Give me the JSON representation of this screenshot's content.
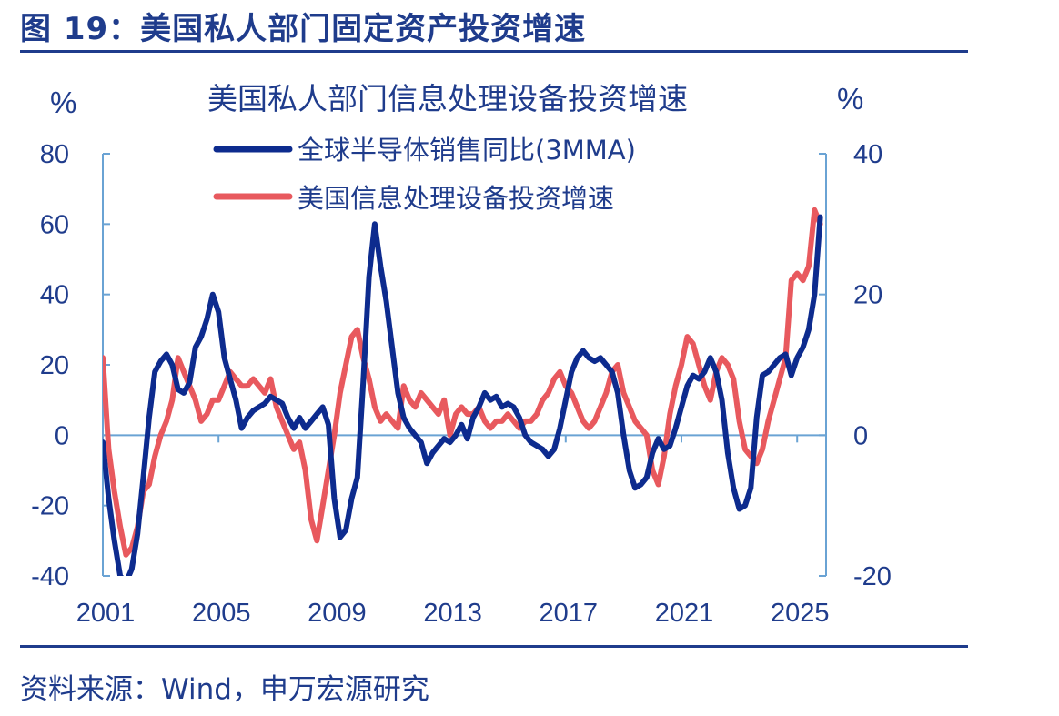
{
  "figure": {
    "title": "图 19：美国私人部门固定资产投资增速",
    "source": "资料来源：Wind，申万宏源研究"
  },
  "colors": {
    "brand": "#1f3c8c",
    "axis": "#6aa3d4",
    "series_semis": "#0d2b8e",
    "series_invest": "#e8595e"
  },
  "chart_data": {
    "type": "line",
    "title": "美国私人部门信息处理设备投资增速",
    "left_unit": "%",
    "right_unit": "%",
    "x_ticks": [
      "2001",
      "2005",
      "2009",
      "2013",
      "2017",
      "2021",
      "2025"
    ],
    "x_range": [
      2001,
      2026
    ],
    "y_left": {
      "range": [
        -40,
        80
      ],
      "ticks": [
        "-40",
        "-20",
        "0",
        "20",
        "40",
        "60",
        "80"
      ]
    },
    "y_right": {
      "range": [
        -20,
        40
      ],
      "ticks": [
        "-20",
        "0",
        "20",
        "40"
      ]
    },
    "grid": false,
    "legend_placement": "top-center",
    "series": [
      {
        "name": "全球半导体销售同比(3MMA)",
        "axis": "left",
        "points": [
          [
            2001.0,
            -2
          ],
          [
            2001.2,
            -18
          ],
          [
            2001.4,
            -30
          ],
          [
            2001.6,
            -40
          ],
          [
            2001.8,
            -42
          ],
          [
            2002.0,
            -38
          ],
          [
            2002.2,
            -28
          ],
          [
            2002.4,
            -12
          ],
          [
            2002.6,
            5
          ],
          [
            2002.8,
            18
          ],
          [
            2003.0,
            21
          ],
          [
            2003.2,
            23
          ],
          [
            2003.4,
            20
          ],
          [
            2003.6,
            13
          ],
          [
            2003.8,
            12
          ],
          [
            2004.0,
            15
          ],
          [
            2004.2,
            25
          ],
          [
            2004.4,
            28
          ],
          [
            2004.6,
            33
          ],
          [
            2004.8,
            40
          ],
          [
            2005.0,
            35
          ],
          [
            2005.2,
            22
          ],
          [
            2005.4,
            16
          ],
          [
            2005.6,
            10
          ],
          [
            2005.8,
            2
          ],
          [
            2006.0,
            5
          ],
          [
            2006.2,
            7
          ],
          [
            2006.4,
            8
          ],
          [
            2006.6,
            9
          ],
          [
            2006.8,
            11
          ],
          [
            2007.0,
            10
          ],
          [
            2007.2,
            9
          ],
          [
            2007.4,
            5
          ],
          [
            2007.6,
            2
          ],
          [
            2007.8,
            5
          ],
          [
            2008.0,
            2
          ],
          [
            2008.2,
            4
          ],
          [
            2008.4,
            6
          ],
          [
            2008.6,
            8
          ],
          [
            2008.8,
            3
          ],
          [
            2009.0,
            -18
          ],
          [
            2009.2,
            -29
          ],
          [
            2009.4,
            -27
          ],
          [
            2009.6,
            -18
          ],
          [
            2009.8,
            -12
          ],
          [
            2010.0,
            15
          ],
          [
            2010.2,
            45
          ],
          [
            2010.4,
            60
          ],
          [
            2010.6,
            48
          ],
          [
            2010.8,
            38
          ],
          [
            2011.0,
            25
          ],
          [
            2011.2,
            12
          ],
          [
            2011.4,
            5
          ],
          [
            2011.6,
            2
          ],
          [
            2011.8,
            0
          ],
          [
            2012.0,
            -2
          ],
          [
            2012.2,
            -8
          ],
          [
            2012.4,
            -5
          ],
          [
            2012.6,
            -3
          ],
          [
            2012.8,
            -1
          ],
          [
            2013.0,
            -2
          ],
          [
            2013.2,
            0
          ],
          [
            2013.4,
            3
          ],
          [
            2013.6,
            -1
          ],
          [
            2013.8,
            5
          ],
          [
            2014.0,
            8
          ],
          [
            2014.2,
            12
          ],
          [
            2014.4,
            10
          ],
          [
            2014.6,
            11
          ],
          [
            2014.8,
            8
          ],
          [
            2015.0,
            9
          ],
          [
            2015.2,
            8
          ],
          [
            2015.4,
            5
          ],
          [
            2015.6,
            0
          ],
          [
            2015.8,
            -2
          ],
          [
            2016.0,
            -3
          ],
          [
            2016.2,
            -4
          ],
          [
            2016.4,
            -6
          ],
          [
            2016.6,
            -4
          ],
          [
            2016.8,
            2
          ],
          [
            2017.0,
            10
          ],
          [
            2017.2,
            18
          ],
          [
            2017.4,
            22
          ],
          [
            2017.6,
            24
          ],
          [
            2017.8,
            22
          ],
          [
            2018.0,
            21
          ],
          [
            2018.2,
            22
          ],
          [
            2018.4,
            20
          ],
          [
            2018.6,
            18
          ],
          [
            2018.8,
            12
          ],
          [
            2019.0,
            0
          ],
          [
            2019.2,
            -10
          ],
          [
            2019.4,
            -15
          ],
          [
            2019.6,
            -14
          ],
          [
            2019.8,
            -12
          ],
          [
            2020.0,
            -5
          ],
          [
            2020.2,
            -1
          ],
          [
            2020.4,
            -4
          ],
          [
            2020.6,
            -3
          ],
          [
            2020.8,
            2
          ],
          [
            2021.0,
            8
          ],
          [
            2021.2,
            14
          ],
          [
            2021.4,
            17
          ],
          [
            2021.6,
            16
          ],
          [
            2021.8,
            18
          ],
          [
            2022.0,
            22
          ],
          [
            2022.2,
            18
          ],
          [
            2022.4,
            10
          ],
          [
            2022.6,
            -5
          ],
          [
            2022.8,
            -15
          ],
          [
            2023.0,
            -21
          ],
          [
            2023.2,
            -20
          ],
          [
            2023.4,
            -15
          ],
          [
            2023.6,
            5
          ],
          [
            2023.8,
            17
          ],
          [
            2024.0,
            18
          ],
          [
            2024.2,
            20
          ],
          [
            2024.4,
            22
          ],
          [
            2024.6,
            23
          ],
          [
            2024.8,
            17
          ],
          [
            2025.0,
            22
          ],
          [
            2025.2,
            25
          ],
          [
            2025.4,
            30
          ],
          [
            2025.6,
            40
          ],
          [
            2025.8,
            62
          ]
        ]
      },
      {
        "name": "美国信息处理设备投资增速",
        "axis": "right",
        "points": [
          [
            2001.0,
            11
          ],
          [
            2001.2,
            -2
          ],
          [
            2001.4,
            -8
          ],
          [
            2001.6,
            -13
          ],
          [
            2001.8,
            -17
          ],
          [
            2002.0,
            -16
          ],
          [
            2002.2,
            -13
          ],
          [
            2002.4,
            -8
          ],
          [
            2002.6,
            -7
          ],
          [
            2002.8,
            -3
          ],
          [
            2003.0,
            0
          ],
          [
            2003.2,
            2
          ],
          [
            2003.4,
            5
          ],
          [
            2003.6,
            11
          ],
          [
            2003.8,
            9
          ],
          [
            2004.0,
            7
          ],
          [
            2004.2,
            5
          ],
          [
            2004.4,
            2
          ],
          [
            2004.6,
            3
          ],
          [
            2004.8,
            5
          ],
          [
            2005.0,
            5
          ],
          [
            2005.2,
            7
          ],
          [
            2005.4,
            9
          ],
          [
            2005.6,
            8
          ],
          [
            2005.8,
            7
          ],
          [
            2006.0,
            7
          ],
          [
            2006.2,
            8
          ],
          [
            2006.4,
            7
          ],
          [
            2006.6,
            6
          ],
          [
            2006.8,
            8
          ],
          [
            2007.0,
            4
          ],
          [
            2007.2,
            2
          ],
          [
            2007.4,
            0
          ],
          [
            2007.6,
            -2
          ],
          [
            2007.8,
            -1
          ],
          [
            2008.0,
            -5
          ],
          [
            2008.2,
            -12
          ],
          [
            2008.4,
            -15
          ],
          [
            2008.6,
            -10
          ],
          [
            2008.8,
            -5
          ],
          [
            2009.0,
            0
          ],
          [
            2009.2,
            6
          ],
          [
            2009.4,
            10
          ],
          [
            2009.6,
            14
          ],
          [
            2009.8,
            15
          ],
          [
            2010.0,
            11
          ],
          [
            2010.2,
            8
          ],
          [
            2010.4,
            4
          ],
          [
            2010.6,
            2
          ],
          [
            2010.8,
            3
          ],
          [
            2011.0,
            2
          ],
          [
            2011.2,
            1
          ],
          [
            2011.4,
            7
          ],
          [
            2011.6,
            5
          ],
          [
            2011.8,
            4
          ],
          [
            2012.0,
            6
          ],
          [
            2012.2,
            5
          ],
          [
            2012.4,
            4
          ],
          [
            2012.6,
            3
          ],
          [
            2012.8,
            5
          ],
          [
            2013.0,
            0
          ],
          [
            2013.2,
            3
          ],
          [
            2013.4,
            4
          ],
          [
            2013.6,
            3
          ],
          [
            2013.8,
            3
          ],
          [
            2014.0,
            4
          ],
          [
            2014.2,
            2
          ],
          [
            2014.4,
            1
          ],
          [
            2014.6,
            2
          ],
          [
            2014.8,
            2
          ],
          [
            2015.0,
            3
          ],
          [
            2015.2,
            2
          ],
          [
            2015.4,
            1
          ],
          [
            2015.6,
            2
          ],
          [
            2015.8,
            2
          ],
          [
            2016.0,
            3
          ],
          [
            2016.2,
            5
          ],
          [
            2016.4,
            6
          ],
          [
            2016.6,
            8
          ],
          [
            2016.8,
            9
          ],
          [
            2017.0,
            7
          ],
          [
            2017.2,
            6
          ],
          [
            2017.4,
            4
          ],
          [
            2017.6,
            2
          ],
          [
            2017.8,
            1
          ],
          [
            2018.0,
            2
          ],
          [
            2018.2,
            4
          ],
          [
            2018.4,
            6
          ],
          [
            2018.6,
            9
          ],
          [
            2018.8,
            10
          ],
          [
            2019.0,
            6
          ],
          [
            2019.2,
            4
          ],
          [
            2019.4,
            2
          ],
          [
            2019.6,
            1
          ],
          [
            2019.8,
            0
          ],
          [
            2020.0,
            -5
          ],
          [
            2020.2,
            -7
          ],
          [
            2020.4,
            -3
          ],
          [
            2020.6,
            3
          ],
          [
            2020.8,
            7
          ],
          [
            2021.0,
            10
          ],
          [
            2021.2,
            14
          ],
          [
            2021.4,
            13
          ],
          [
            2021.6,
            10
          ],
          [
            2021.8,
            7
          ],
          [
            2022.0,
            5
          ],
          [
            2022.2,
            9
          ],
          [
            2022.4,
            11
          ],
          [
            2022.6,
            10
          ],
          [
            2022.8,
            8
          ],
          [
            2023.0,
            2
          ],
          [
            2023.2,
            -2
          ],
          [
            2023.4,
            -3
          ],
          [
            2023.6,
            -4
          ],
          [
            2023.8,
            -2
          ],
          [
            2024.0,
            2
          ],
          [
            2024.2,
            5
          ],
          [
            2024.4,
            8
          ],
          [
            2024.6,
            11
          ],
          [
            2024.8,
            22
          ],
          [
            2025.0,
            23
          ],
          [
            2025.2,
            22
          ],
          [
            2025.4,
            24
          ],
          [
            2025.6,
            32
          ],
          [
            2025.8,
            30
          ]
        ]
      }
    ]
  }
}
